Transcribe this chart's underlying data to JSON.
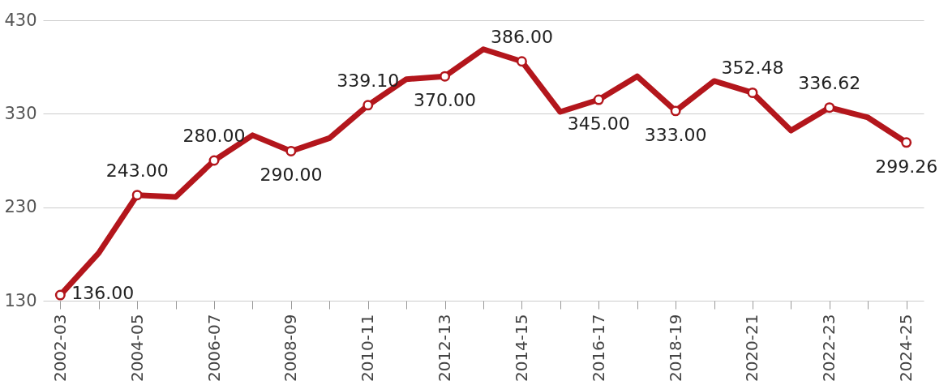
{
  "chart_data": {
    "type": "line",
    "categories": [
      "2002-03",
      null,
      "2004-05",
      null,
      "2006-07",
      null,
      "2008-09",
      null,
      "2010-11",
      null,
      "2012-13",
      null,
      "2014-15",
      null,
      "2016-17",
      null,
      "2018-19",
      null,
      "2020-21",
      null,
      "2022-23",
      null,
      "2024-25"
    ],
    "series": [
      {
        "color": "#b3161c",
        "values": [
          136,
          181,
          243,
          241,
          280,
          307,
          290,
          304,
          339.1,
          367,
          370,
          399,
          386,
          332,
          345,
          370,
          333,
          365,
          352.48,
          312,
          336.62,
          326,
          299.26
        ],
        "value_labels": [
          "136.00",
          null,
          "243.00",
          null,
          "280.00",
          null,
          "290.00",
          null,
          "339.10",
          null,
          "370.00",
          null,
          "386.00",
          null,
          "345.00",
          null,
          "333.00",
          null,
          "352.48",
          null,
          "336.62",
          null,
          "299.26"
        ]
      }
    ],
    "ylim": [
      130,
      430
    ],
    "yticks": [
      130,
      230,
      330,
      430
    ],
    "grid": "y",
    "legend": false,
    "line_style": "solid"
  }
}
